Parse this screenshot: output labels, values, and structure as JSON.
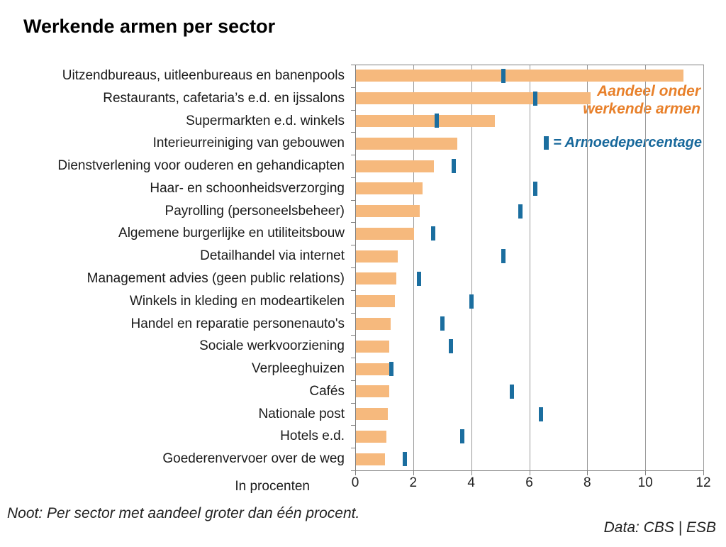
{
  "title": "Werkende armen per sector",
  "chart_data": {
    "type": "bar",
    "orientation": "horizontal",
    "title": "Werkende armen per sector",
    "xlabel": "In procenten",
    "ylabel": "",
    "xlim": [
      0,
      12
    ],
    "xticks": [
      0,
      2,
      4,
      6,
      8,
      10,
      12
    ],
    "grid": true,
    "legend_position": "top-right",
    "categories": [
      "Uitzendbureaus, uitleenbureaus en banenpools",
      "Restaurants, cafetaria’s e.d. en ijssalons",
      "Supermarkten e.d. winkels",
      "Interieurreiniging van gebouwen",
      "Dienstverlening voor ouderen en  gehandicapten",
      "Haar- en schoonheidsverzorging",
      "Payrolling (personeelsbeheer)",
      "Algemene burgerlijke en utiliteitsbouw",
      "Detailhandel via internet",
      "Management advies (geen public relations)",
      "Winkels in kleding en modeartikelen",
      "Handel en reparatie personenauto's",
      "Sociale werkvoorziening",
      "Verpleeghuizen",
      "Cafés",
      "Nationale post",
      "Hotels e.d.",
      "Goederenvervoer over de weg"
    ],
    "series": [
      {
        "name": "Aandeel onder werkende armen",
        "style": "bar",
        "values": [
          11.3,
          8.1,
          4.8,
          3.5,
          2.7,
          2.3,
          2.2,
          2.0,
          1.45,
          1.4,
          1.35,
          1.2,
          1.15,
          1.15,
          1.15,
          1.1,
          1.05,
          1.0
        ]
      },
      {
        "name": "Armoedepercentage",
        "style": "tick-marker",
        "values": [
          5.1,
          6.2,
          2.8,
          null,
          3.4,
          6.2,
          5.7,
          2.7,
          5.1,
          2.2,
          4.0,
          3.0,
          3.3,
          1.25,
          5.4,
          6.4,
          3.7,
          1.7
        ]
      }
    ]
  },
  "legend": {
    "bar_line1": "Aandeel onder",
    "bar_line2": "werkende armen",
    "tick_label": "= Armoedepercentage"
  },
  "axis": {
    "xlabel": "In procenten"
  },
  "footer": {
    "note": "Noot: Per sector met aandeel groter dan één procent.",
    "source": "Data: CBS | ESB"
  },
  "colors": {
    "bar_orange": "#F6B97D",
    "tick_blue": "#1B6E9F",
    "legend_orange_text": "#E8802A",
    "legend_blue_text": "#17689B",
    "gridline_gray": "#999999",
    "axis_gray": "#808080",
    "text_dark": "#1A1A1A"
  }
}
